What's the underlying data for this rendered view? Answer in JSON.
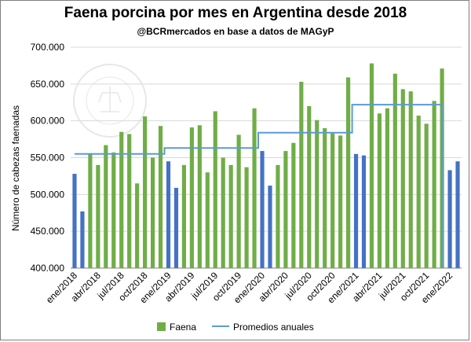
{
  "chart_data": {
    "type": "bar",
    "title": "Faena porcina por mes en Argentina desde 2018",
    "subtitle": "@BCRmercados en base a datos de MAGyP",
    "xlabel": "",
    "ylabel": "Número de cabezas faenadas",
    "ylim": [
      400000,
      700000
    ],
    "yticks": [
      "400.000",
      "450.000",
      "500.000",
      "550.000",
      "600.000",
      "650.000",
      "700.000"
    ],
    "ytick_values": [
      400000,
      450000,
      500000,
      550000,
      600000,
      650000,
      700000
    ],
    "xtick_labels": [
      "ene/2018",
      "abr/2018",
      "jul/2018",
      "oct/2018",
      "ene/2019",
      "abr/2019",
      "jul/2019",
      "oct/2019",
      "ene/2020",
      "abr/2020",
      "jul/2020",
      "oct/2020",
      "ene/2021",
      "abr/2021",
      "jul/2021",
      "oct/2021",
      "ene/2022"
    ],
    "grid": true,
    "legend_position": "bottom",
    "colors": {
      "faena": "#70ad47",
      "highlight": "#4472c4",
      "promedio": "#5b9bd5"
    },
    "series": [
      {
        "name": "Faena",
        "values": [
          528000,
          477000,
          555000,
          540000,
          567000,
          557000,
          585000,
          582000,
          515000,
          606000,
          550000,
          593000,
          545000,
          509000,
          540000,
          591000,
          594000,
          530000,
          613000,
          550000,
          540000,
          581000,
          537000,
          617000,
          559000,
          512000,
          540000,
          559000,
          570000,
          653000,
          620000,
          601000,
          590000,
          583000,
          580000,
          659000,
          555000,
          553000,
          678000,
          610000,
          617000,
          664000,
          643000,
          640000,
          607000,
          596000,
          627000,
          671000,
          533000,
          545000
        ],
        "highlight_indices": [
          0,
          1,
          12,
          13,
          24,
          25,
          36,
          37,
          48,
          49
        ]
      },
      {
        "name": "Promedios anuales",
        "type": "line",
        "segments": [
          {
            "from": 0,
            "to": 11,
            "value": 555000
          },
          {
            "from": 12,
            "to": 23,
            "value": 563000
          },
          {
            "from": 24,
            "to": 35,
            "value": 584000
          },
          {
            "from": 36,
            "to": 47,
            "value": 622000
          }
        ]
      }
    ],
    "watermark": "BOLSA DE COMERCIO DE ROSARIO"
  }
}
